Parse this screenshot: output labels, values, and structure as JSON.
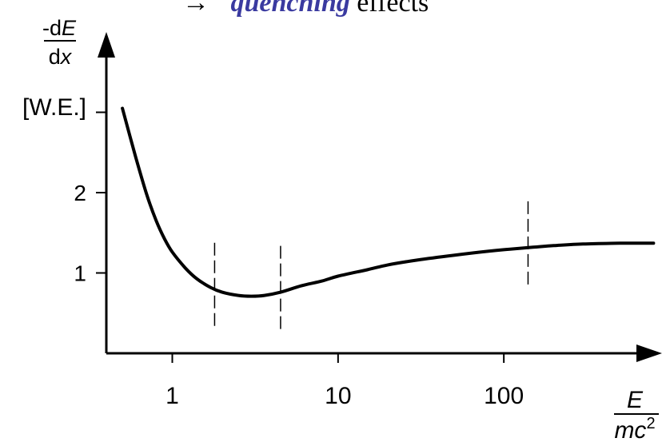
{
  "header": {
    "arrow": "→",
    "emph": "quenching",
    "rest": " effects",
    "emph_color": "#3a3aa0"
  },
  "chart_data": {
    "type": "line",
    "title": "",
    "xscale": "log",
    "xlim": [
      0.4,
      900
    ],
    "ylim": [
      0,
      4
    ],
    "ylabel": {
      "prefix": "-d",
      "numerator_var": "E",
      "denominator_prefix": "d",
      "denominator_var": "x",
      "unit": "[W.E.]"
    },
    "xlabel": {
      "numerator": "E",
      "denominator_base": "mc",
      "denominator_exp": "2"
    },
    "xticks": [
      {
        "value": 1,
        "label": "1"
      },
      {
        "value": 10,
        "label": "10"
      },
      {
        "value": 100,
        "label": "100"
      }
    ],
    "yticks": [
      {
        "value": 1,
        "label": "1"
      },
      {
        "value": 2,
        "label": "2"
      },
      {
        "value": 3,
        "label": ""
      }
    ],
    "series": [
      {
        "name": "",
        "color": "#000000",
        "points": [
          [
            0.5,
            3.05
          ],
          [
            0.6,
            2.45
          ],
          [
            0.7,
            1.98
          ],
          [
            0.8,
            1.65
          ],
          [
            0.9,
            1.42
          ],
          [
            1.0,
            1.26
          ],
          [
            1.2,
            1.06
          ],
          [
            1.4,
            0.93
          ],
          [
            1.7,
            0.82
          ],
          [
            2.0,
            0.76
          ],
          [
            2.5,
            0.72
          ],
          [
            3.0,
            0.71
          ],
          [
            3.6,
            0.72
          ],
          [
            4.5,
            0.76
          ],
          [
            6.0,
            0.84
          ],
          [
            8.0,
            0.9
          ],
          [
            10,
            0.96
          ],
          [
            15,
            1.04
          ],
          [
            20,
            1.1
          ],
          [
            30,
            1.16
          ],
          [
            50,
            1.22
          ],
          [
            80,
            1.27
          ],
          [
            100,
            1.29
          ],
          [
            150,
            1.32
          ],
          [
            200,
            1.34
          ],
          [
            300,
            1.36
          ],
          [
            500,
            1.37
          ],
          [
            800,
            1.37
          ]
        ]
      }
    ],
    "markers": [
      1.8,
      4.5,
      140
    ]
  }
}
